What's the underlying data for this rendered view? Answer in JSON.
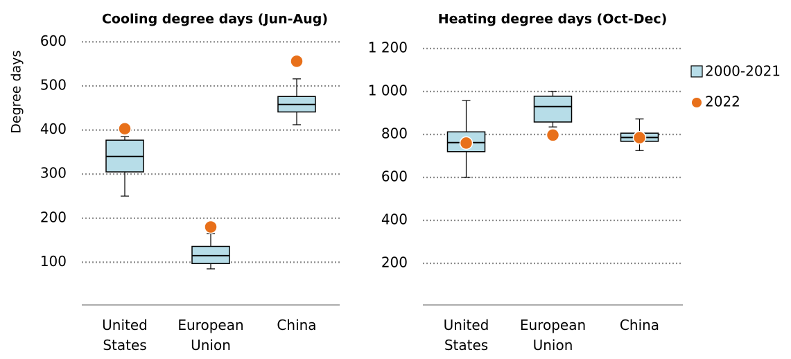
{
  "chart_data": [
    {
      "type": "box",
      "title": "Cooling degree days (Jun-Aug)",
      "ylabel": "Degree days",
      "categories": [
        "United States",
        "European Union",
        "China"
      ],
      "series": [
        {
          "color": "#b7dde8",
          "min": [
            250,
            85,
            412
          ],
          "q1": [
            305,
            97,
            441
          ],
          "median": [
            340,
            115,
            458
          ],
          "q3": [
            377,
            136,
            476
          ],
          "max": [
            385,
            165,
            516
          ]
        },
        {
          "color": "#e8701a",
          "values": [
            403,
            180,
            556
          ]
        }
      ],
      "ylim": [
        0,
        620
      ],
      "yticks": [
        100,
        200,
        300,
        400,
        500,
        600
      ],
      "grid": true,
      "legend": false
    },
    {
      "type": "box",
      "title": "Heating degree days (Oct-Dec)",
      "categories": [
        "United States",
        "European Union",
        "China"
      ],
      "series": [
        {
          "name": "2000-2021",
          "color": "#b7dde8",
          "min": [
            600,
            835,
            725
          ],
          "q1": [
            720,
            858,
            768
          ],
          "median": [
            762,
            930,
            786
          ],
          "q3": [
            812,
            978,
            806
          ],
          "max": [
            958,
            1000,
            872
          ]
        },
        {
          "name": "2022",
          "color": "#e8701a",
          "values": [
            760,
            797,
            785
          ]
        }
      ],
      "ylim": [
        0,
        1300
      ],
      "yticks": [
        {
          "value": 200,
          "label": "200"
        },
        {
          "value": 400,
          "label": "400"
        },
        {
          "value": 600,
          "label": "600"
        },
        {
          "value": 800,
          "label": "800"
        },
        {
          "value": 1000,
          "label": "1 000"
        },
        {
          "value": 1200,
          "label": "1 200"
        }
      ],
      "grid": true,
      "legend": "right"
    }
  ]
}
